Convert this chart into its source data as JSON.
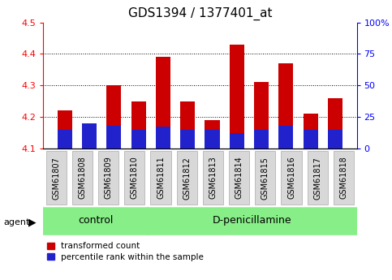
{
  "title": "GDS1394 / 1377401_at",
  "samples": [
    "GSM61807",
    "GSM61808",
    "GSM61809",
    "GSM61810",
    "GSM61811",
    "GSM61812",
    "GSM61813",
    "GSM61814",
    "GSM61815",
    "GSM61816",
    "GSM61817",
    "GSM61818"
  ],
  "red_values": [
    4.22,
    4.11,
    4.3,
    4.25,
    4.39,
    4.25,
    4.19,
    4.43,
    4.31,
    4.37,
    4.21,
    4.26
  ],
  "blue_percentiles": [
    15,
    20,
    18,
    15,
    17,
    15,
    15,
    12,
    15,
    18,
    15,
    15
  ],
  "baseline": 4.1,
  "ylim_left": [
    4.1,
    4.5
  ],
  "ylim_right": [
    0,
    100
  ],
  "yticks_left": [
    4.1,
    4.2,
    4.3,
    4.4,
    4.5
  ],
  "yticks_right": [
    0,
    25,
    50,
    75,
    100
  ],
  "ytick_labels_right": [
    "0",
    "25",
    "50",
    "75",
    "100%"
  ],
  "grid_values": [
    4.2,
    4.3,
    4.4
  ],
  "bar_width": 0.6,
  "red_color": "#cc0000",
  "blue_color": "#2222cc",
  "control_count": 4,
  "treatment_count": 8,
  "control_label": "control",
  "treatment_label": "D-penicillamine",
  "agent_label": "agent",
  "legend_red_label": "transformed count",
  "legend_blue_label": "percentile rank within the sample",
  "green_band_color": "#88ee88",
  "title_fontsize": 11,
  "tick_fontsize": 7,
  "band_fontsize": 9,
  "legend_fontsize": 7.5
}
